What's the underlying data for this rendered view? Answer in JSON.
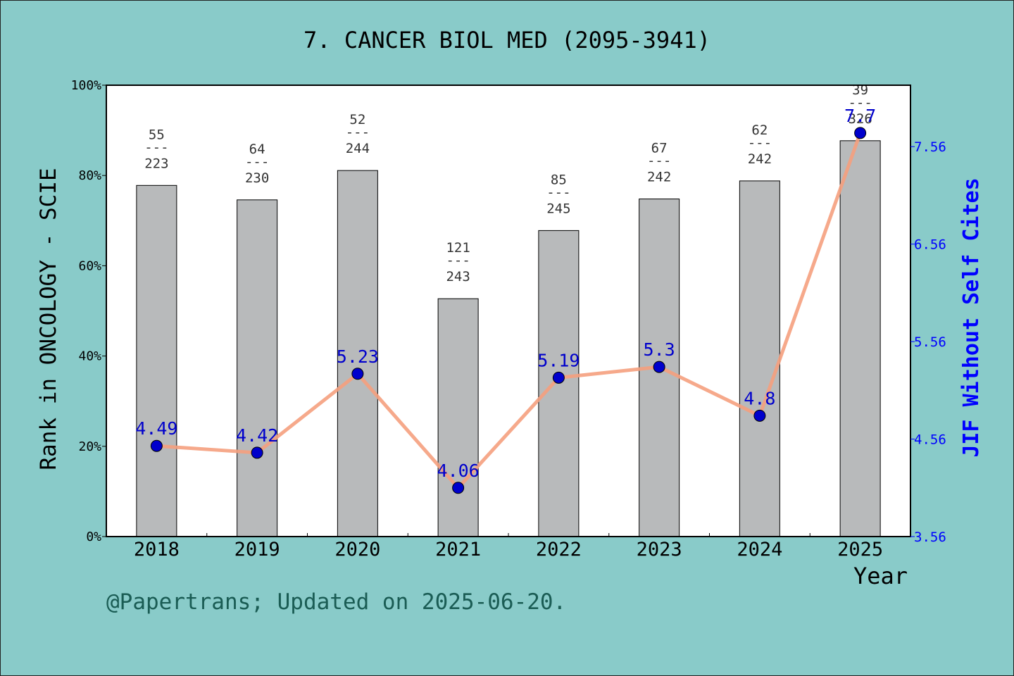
{
  "colors": {
    "background": "#89cbc9",
    "plot_bg": "#ffffff",
    "bar": "#b8babb",
    "line": "#f5a07e",
    "point": "#0000cc",
    "right_axis": "#0000ff",
    "footer": "#1a5c54"
  },
  "footer": "@Papertrans; Updated on 2025-06-20.",
  "chart_data": {
    "type": "bar",
    "title": "7. CANCER BIOL MED (2095-3941)",
    "xlabel": "Year",
    "ylabel": "Rank in ONCOLOGY - SCIE",
    "y2label": "JIF Without Self Cites",
    "categories": [
      "2018",
      "2019",
      "2020",
      "2021",
      "2022",
      "2023",
      "2024",
      "2025"
    ],
    "ylim": [
      0,
      100
    ],
    "yticks": [
      "0%",
      "20%",
      "40%",
      "60%",
      "80%",
      "100%"
    ],
    "y2lim": [
      3.56,
      8.19
    ],
    "y2ticks": [
      "3.56",
      "4.56",
      "5.56",
      "6.56",
      "7.56"
    ],
    "grid": false,
    "series": [
      {
        "kind": "bar",
        "values": [
          77.8,
          74.6,
          81.1,
          52.7,
          67.8,
          74.8,
          78.8,
          87.7
        ],
        "rank_labels": [
          {
            "rank": "55",
            "total": "223"
          },
          {
            "rank": "64",
            "total": "230"
          },
          {
            "rank": "52",
            "total": "244"
          },
          {
            "rank": "121",
            "total": "243"
          },
          {
            "rank": "85",
            "total": "245"
          },
          {
            "rank": "67",
            "total": "242"
          },
          {
            "rank": "62",
            "total": "242"
          },
          {
            "rank": "39",
            "total": "326"
          }
        ]
      },
      {
        "kind": "line",
        "axis": "right",
        "values": [
          4.49,
          4.42,
          5.23,
          4.06,
          5.19,
          5.3,
          4.8,
          7.7
        ],
        "labels": [
          "4.49",
          "4.42",
          "5.23",
          "4.06",
          "5.19",
          "5.3",
          "4.8",
          "7.7"
        ]
      }
    ]
  }
}
